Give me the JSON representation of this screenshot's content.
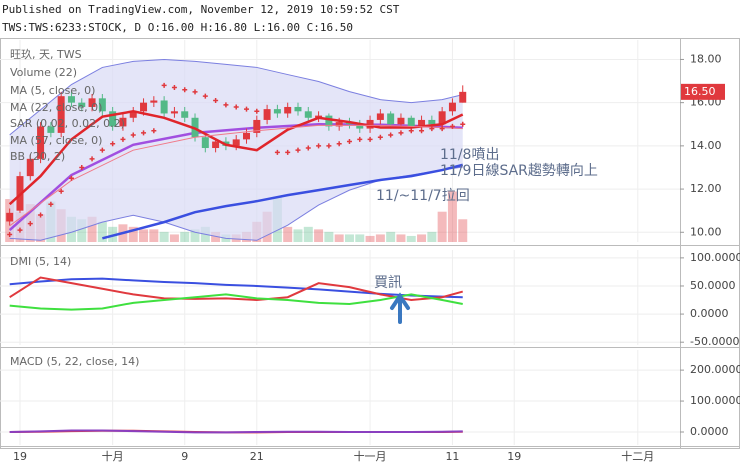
{
  "header": {
    "line1": "Published on TradingView.com, November 12, 2019 10:59:52 CST",
    "line2": "TWS:TWS:6233:STOCK, D O:16.00 H:16.80 L:16.00 C:16.50"
  },
  "chart_data": [
    {
      "type": "candlestick",
      "title": "旺玖, 天, TWS",
      "xlim": [
        -0.94,
        65.1
      ],
      "xticks": [
        {
          "value": 1,
          "label": "19"
        },
        {
          "value": 10,
          "label": "十月"
        },
        {
          "value": 17,
          "label": "9"
        },
        {
          "value": 24,
          "label": "21"
        },
        {
          "value": 35,
          "label": "十一月"
        },
        {
          "value": 43,
          "label": "11"
        },
        {
          "value": 49,
          "label": "19"
        },
        {
          "value": 61,
          "label": "十二月"
        }
      ],
      "ylim": [
        9.55,
        18.9
      ],
      "yticks": [
        {
          "value": 18,
          "label": "18.00"
        },
        {
          "value": 16,
          "label": "16.00"
        },
        {
          "value": 14,
          "label": "14.00"
        },
        {
          "value": 12,
          "label": "12.00"
        },
        {
          "value": 10,
          "label": "10.00"
        }
      ],
      "grid": true,
      "up_color": "#e0393e",
      "down_color": "#53b987",
      "open": [
        10.5,
        11.0,
        12.6,
        13.4,
        14.9,
        14.6,
        16.3,
        16.0,
        15.8,
        16.2,
        15.6,
        14.9,
        15.3,
        15.6,
        16.0,
        16.1,
        15.5,
        15.6,
        15.3,
        14.4,
        13.9,
        14.2,
        14.0,
        14.3,
        14.6,
        15.2,
        15.7,
        15.5,
        15.8,
        15.6,
        15.3,
        15.4,
        14.9,
        15.1,
        15.0,
        14.8,
        15.2,
        15.5,
        15.0,
        15.3,
        14.9,
        15.2,
        15.0,
        15.6,
        16.0
      ],
      "high": [
        11.1,
        12.8,
        13.6,
        15.1,
        15.1,
        16.5,
        16.5,
        16.2,
        16.4,
        16.4,
        15.8,
        15.5,
        15.8,
        16.2,
        16.3,
        16.3,
        15.8,
        15.8,
        15.5,
        14.6,
        14.3,
        14.4,
        14.5,
        14.8,
        15.4,
        15.9,
        15.9,
        16.0,
        16.0,
        15.8,
        15.6,
        15.5,
        15.3,
        15.3,
        15.2,
        15.4,
        15.7,
        15.6,
        15.5,
        15.4,
        15.4,
        15.4,
        15.8,
        16.2,
        16.8
      ],
      "low": [
        10.3,
        10.9,
        12.4,
        13.2,
        14.4,
        14.4,
        15.8,
        15.6,
        15.6,
        15.4,
        14.7,
        14.7,
        15.1,
        15.4,
        15.8,
        15.3,
        15.3,
        15.1,
        14.2,
        13.7,
        13.7,
        13.8,
        13.8,
        14.1,
        14.4,
        15.0,
        15.3,
        15.3,
        15.4,
        15.1,
        15.1,
        14.7,
        14.7,
        14.8,
        14.6,
        14.6,
        15.0,
        14.8,
        14.8,
        14.7,
        14.7,
        14.8,
        14.8,
        15.4,
        16.0
      ],
      "close": [
        10.9,
        12.6,
        13.4,
        14.9,
        14.6,
        16.3,
        16.0,
        15.8,
        16.2,
        15.6,
        14.9,
        15.3,
        15.6,
        16.0,
        16.1,
        15.5,
        15.6,
        15.3,
        14.4,
        13.9,
        14.2,
        14.0,
        14.3,
        14.6,
        15.2,
        15.7,
        15.5,
        15.8,
        15.6,
        15.3,
        15.4,
        14.9,
        15.1,
        15.0,
        14.8,
        15.2,
        15.5,
        15.0,
        15.3,
        14.9,
        15.2,
        15.0,
        15.6,
        16.0,
        16.5
      ],
      "price_tag": "16.50",
      "price_tag_color": "#e0393e",
      "volume": {
        "name": "Volume (22)",
        "ylim": [
          0,
          40000
        ],
        "values": [
          8500,
          6000,
          7500,
          5500,
          8000,
          6500,
          5000,
          4500,
          5000,
          4000,
          3000,
          3500,
          3000,
          2500,
          2500,
          2000,
          1500,
          2000,
          2500,
          3000,
          2000,
          1500,
          1500,
          2000,
          4000,
          6000,
          9000,
          3000,
          2500,
          3000,
          2500,
          2000,
          1500,
          1500,
          1500,
          1200,
          1500,
          2000,
          1500,
          1200,
          1500,
          2000,
          6000,
          10000,
          4500
        ]
      },
      "bands": {
        "name": "BB (20, 2)",
        "color": "#7b7fe0",
        "fill": "#d9daf5",
        "x": [
          0,
          3,
          6,
          9,
          12,
          15,
          18,
          21,
          24,
          27,
          30,
          33,
          36,
          39,
          42,
          44
        ],
        "upper": [
          14.51,
          15.67,
          16.84,
          17.63,
          17.91,
          18.0,
          17.91,
          17.77,
          17.63,
          17.3,
          16.98,
          16.51,
          16.14,
          16.0,
          16.14,
          16.37
        ],
        "lower": [
          9.72,
          9.63,
          10.0,
          10.47,
          10.79,
          10.47,
          10.0,
          9.72,
          9.63,
          10.33,
          11.26,
          11.95,
          12.42,
          12.65,
          12.88,
          13.02
        ],
        "basis_x": [
          0,
          6,
          12,
          18,
          24,
          30,
          36,
          42,
          44
        ],
        "basis": [
          10.1,
          12.65,
          14.05,
          14.6,
          14.84,
          15.0,
          14.98,
          14.88,
          14.84
        ],
        "basis_color": "#a14fe0"
      },
      "series": [
        {
          "name": "MA (5, close, 0)",
          "color": "#e0252b",
          "width": 2.5,
          "x": [
            0,
            3,
            6,
            9,
            12,
            15,
            18,
            21,
            24,
            27,
            30,
            33,
            36,
            39,
            42,
            44
          ],
          "values": [
            11.3,
            12.6,
            14.3,
            15.35,
            15.6,
            15.3,
            14.8,
            14.05,
            13.8,
            14.75,
            15.3,
            15.1,
            14.85,
            14.85,
            15.0,
            15.45
          ]
        },
        {
          "name": "MA (22, close, 0)",
          "color": "#f07a8a",
          "width": 1,
          "x": [
            0,
            6,
            12,
            18,
            24,
            30,
            36,
            42,
            44
          ],
          "values": [
            10.3,
            12.4,
            13.8,
            14.4,
            14.7,
            14.95,
            14.95,
            14.85,
            14.8
          ]
        },
        {
          "name": "MA (57, close, 0)",
          "color": "#3a4fe0",
          "width": 2.5,
          "x": [
            9,
            12,
            15,
            18,
            21,
            24,
            27,
            30,
            33,
            36,
            39,
            42,
            44
          ],
          "values": [
            9.72,
            10.09,
            10.47,
            10.93,
            11.21,
            11.44,
            11.72,
            11.95,
            12.19,
            12.42,
            12.6,
            12.88,
            13.12
          ]
        }
      ],
      "sar": {
        "name": "SAR (0.02, 0.02, 0.2)",
        "color": "#e0393e",
        "values": [
          9.9,
          10.1,
          10.4,
          10.8,
          11.3,
          11.9,
          12.5,
          13.0,
          13.4,
          13.8,
          14.1,
          14.3,
          14.5,
          14.6,
          14.7,
          16.8,
          16.7,
          16.6,
          16.5,
          16.3,
          16.1,
          15.9,
          15.8,
          15.7,
          15.6,
          15.5,
          13.7,
          13.7,
          13.8,
          13.9,
          14.0,
          14.0,
          14.1,
          14.2,
          14.3,
          14.3,
          14.4,
          14.5,
          14.6,
          14.7,
          14.7,
          14.8,
          14.8,
          14.9,
          15.0
        ]
      },
      "annotations": [
        "11/8噴出",
        "11/9日線SAR趨勢轉向上",
        "11/~11/7拉回"
      ],
      "annotation_color": "#5d6d8c"
    },
    {
      "type": "line",
      "title": "DMI (5, 14)",
      "ylim": [
        -55,
        114
      ],
      "yticks": [
        {
          "value": 100,
          "label": "100.0000"
        },
        {
          "value": 50,
          "label": "50.0000"
        },
        {
          "value": 0,
          "label": "0.0000"
        },
        {
          "value": -50,
          "label": "-50.0000"
        }
      ],
      "grid": true,
      "series": [
        {
          "color": "#3a4fe0",
          "width": 2,
          "x": [
            0,
            3,
            6,
            9,
            12,
            15,
            18,
            21,
            24,
            27,
            30,
            33,
            36,
            39,
            42,
            44
          ],
          "values": [
            53,
            58,
            62,
            63,
            60,
            57,
            55,
            52,
            50,
            47,
            44,
            40,
            36,
            33,
            31,
            30
          ]
        },
        {
          "color": "#e0393e",
          "width": 2,
          "x": [
            0,
            3,
            6,
            9,
            12,
            15,
            18,
            21,
            24,
            27,
            30,
            33,
            36,
            39,
            42,
            44
          ],
          "values": [
            30,
            65,
            55,
            45,
            35,
            28,
            27,
            28,
            25,
            30,
            55,
            48,
            35,
            25,
            30,
            40
          ]
        },
        {
          "color": "#3fe03f",
          "width": 2,
          "x": [
            0,
            3,
            6,
            9,
            12,
            15,
            18,
            21,
            24,
            27,
            30,
            33,
            36,
            39,
            42,
            44
          ],
          "values": [
            15,
            10,
            8,
            10,
            20,
            25,
            30,
            35,
            28,
            25,
            20,
            18,
            25,
            35,
            25,
            18
          ]
        }
      ],
      "annotations": [
        "買訊"
      ],
      "annotation_color": "#5d6d8c"
    },
    {
      "type": "line",
      "title": "MACD (5, 22, close, 14)",
      "ylim": [
        -42,
        265
      ],
      "yticks": [
        {
          "value": 200,
          "label": "200.0000"
        },
        {
          "value": 100,
          "label": "100.0000"
        },
        {
          "value": 0,
          "label": "0.0000"
        }
      ],
      "grid": true,
      "series": [
        {
          "color": "#e0393e",
          "width": 2,
          "x": [
            0,
            3,
            6,
            9,
            12,
            15,
            18,
            21,
            24,
            27,
            30,
            33,
            36,
            39,
            42,
            44
          ],
          "values": [
            0,
            1,
            3,
            4,
            4,
            2,
            0,
            -1,
            -1,
            0,
            0,
            0,
            0,
            0,
            0,
            1
          ]
        },
        {
          "color": "#8a3fc0",
          "width": 2,
          "x": [
            0,
            3,
            6,
            9,
            12,
            15,
            18,
            21,
            24,
            27,
            30,
            33,
            36,
            39,
            42,
            44
          ],
          "values": [
            0,
            2,
            5,
            5,
            3,
            1,
            -1,
            -1,
            0,
            1,
            1,
            0,
            0,
            0,
            1,
            2
          ]
        }
      ]
    }
  ]
}
